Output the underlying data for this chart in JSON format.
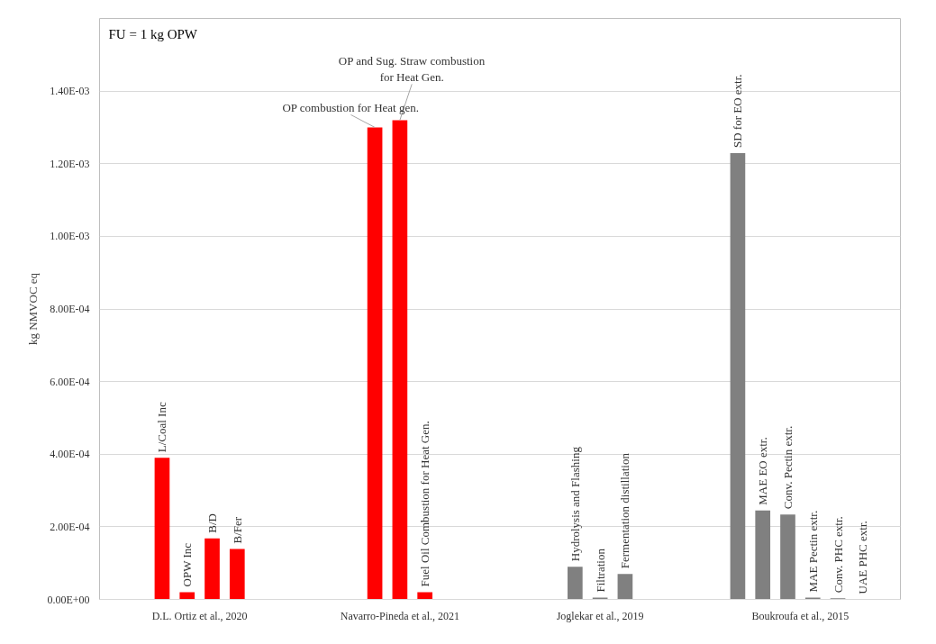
{
  "chart_data": {
    "type": "bar",
    "ylabel": "kg NMVOC eq",
    "annotations": [
      "FU = 1 kg OPW"
    ],
    "categories": [
      "D.L. Ortiz et al., 2020",
      "Navarro-Pineda et al., 2021",
      "Joglekar et al., 2019",
      "Boukroufa et al., 2015"
    ],
    "series": [
      {
        "name": "L/Coal Inc",
        "color": "#ff0000",
        "values": [
          0.00039,
          null,
          null,
          null
        ]
      },
      {
        "name": "OPW Inc",
        "color": "#ff0000",
        "values": [
          2e-05,
          null,
          null,
          null
        ]
      },
      {
        "name": "B/D",
        "color": "#ff0000",
        "values": [
          0.000168,
          null,
          null,
          null
        ]
      },
      {
        "name": "B/Fer",
        "color": "#ff0000",
        "values": [
          0.000139,
          null,
          null,
          null
        ]
      },
      {
        "name": "OP combustion for Heat gen.",
        "color": "#ff0000",
        "values": [
          null,
          0.0013,
          null,
          null
        ]
      },
      {
        "name": "OP and Sug. Straw combustion\nfor Heat Gen.",
        "color": "#ff0000",
        "values": [
          null,
          0.00132,
          null,
          null
        ]
      },
      {
        "name": "Fuel Oil Combustion for Heat Gen.",
        "color": "#ff0000",
        "values": [
          null,
          2e-05,
          null,
          null
        ]
      },
      {
        "name": "Hydrolysis and Flashing",
        "color": "#808080",
        "values": [
          null,
          null,
          9e-05,
          null
        ]
      },
      {
        "name": "Filtration",
        "color": "#808080",
        "values": [
          null,
          null,
          5e-06,
          null
        ]
      },
      {
        "name": "Fermentation distillation",
        "color": "#808080",
        "values": [
          null,
          null,
          7e-05,
          null
        ]
      },
      {
        "name": "SD for EO extr.",
        "color": "#808080",
        "values": [
          null,
          null,
          null,
          0.001229
        ]
      },
      {
        "name": "MAE EO extr.",
        "color": "#808080",
        "values": [
          null,
          null,
          null,
          0.000245
        ]
      },
      {
        "name": "Conv. Pectin extr.",
        "color": "#808080",
        "values": [
          null,
          null,
          null,
          0.000234
        ]
      },
      {
        "name": "MAE Pectin extr.",
        "color": "#808080",
        "values": [
          null,
          null,
          null,
          5e-06
        ]
      },
      {
        "name": "Conv. PHC extr.",
        "color": "#808080",
        "values": [
          null,
          null,
          null,
          3e-06
        ]
      },
      {
        "name": "UAE PHC extr.",
        "values": [
          null,
          null,
          null,
          0
        ]
      }
    ],
    "ylim": [
      0,
      0.0016
    ],
    "yticks": [
      {
        "value": 0,
        "label": "0.00E+00"
      },
      {
        "value": 0.0002,
        "label": "2.00E-04"
      },
      {
        "value": 0.0004,
        "label": "4.00E-04"
      },
      {
        "value": 0.0006,
        "label": "6.00E-04"
      },
      {
        "value": 0.0008,
        "label": "8.00E-04"
      },
      {
        "value": 0.001,
        "label": "1.00E-03"
      },
      {
        "value": 0.0012,
        "label": "1.20E-03"
      },
      {
        "value": 0.0014,
        "label": "1.40E-03"
      }
    ],
    "grid": "y"
  }
}
